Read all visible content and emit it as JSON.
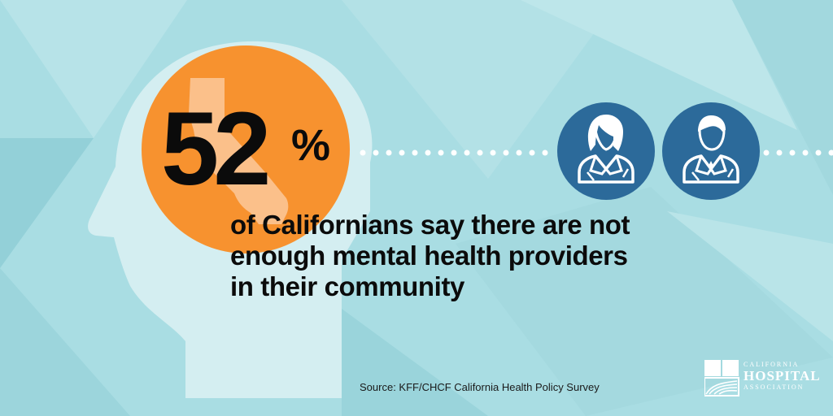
{
  "stat": {
    "number": "52",
    "percent": "%"
  },
  "headline": {
    "line1": "of Californians say there are not",
    "line2": "enough mental health providers",
    "line3": "in their community"
  },
  "source": "Source: KFF/CHCF California Health Policy Survey",
  "logo": {
    "line1": "CALIFORNIA",
    "line2": "HOSPITAL",
    "line3": "ASSOCIATION"
  },
  "icons": [
    "female-provider-icon",
    "male-provider-icon"
  ],
  "colors": {
    "background": "#a9dde3",
    "head_silhouette": "#d8eff2",
    "orange_circle": "#f7922f",
    "california_shape": "#fbc08a",
    "icon_circle": "#2c6a9a",
    "text": "#0b0b0b"
  }
}
